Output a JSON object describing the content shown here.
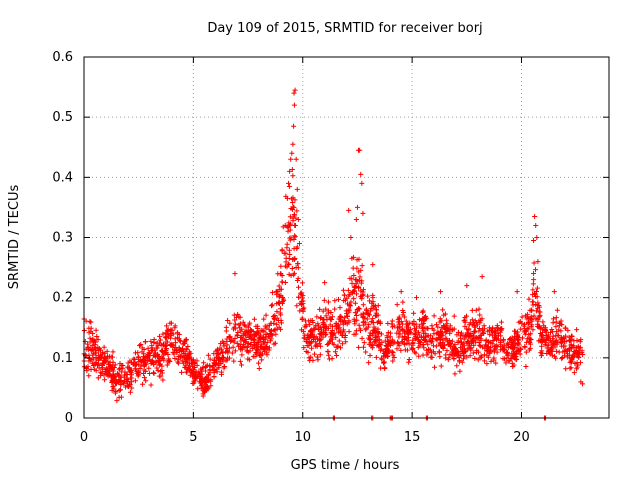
{
  "chart_data": {
    "type": "scatter",
    "title": "Day 109 of 2015, SRMTID for receiver borj",
    "xlabel": "GPS time / hours",
    "ylabel": "SRMTID / TECUs",
    "xlim": [
      0,
      24
    ],
    "ylim": [
      0,
      0.6
    ],
    "x_ticks": [
      "0",
      "5",
      "10",
      "15",
      "20"
    ],
    "y_ticks": [
      "0",
      "0.1",
      "0.2",
      "0.3",
      "0.4",
      "0.5",
      "0.6"
    ],
    "grid": true,
    "marker": "+",
    "color": "#ff0000",
    "baseline_x": [
      11.4,
      11.45,
      13.15,
      13.2,
      14.0,
      14.05,
      14.1,
      15.65,
      15.7,
      21.05,
      21.1
    ],
    "envelope": [
      [
        0.0,
        0.12,
        0.05
      ],
      [
        0.3,
        0.13,
        0.05
      ],
      [
        0.6,
        0.1,
        0.03
      ],
      [
        1.0,
        0.09,
        0.03
      ],
      [
        1.5,
        0.06,
        0.025
      ],
      [
        2.0,
        0.07,
        0.025
      ],
      [
        2.5,
        0.09,
        0.03
      ],
      [
        3.0,
        0.1,
        0.035
      ],
      [
        3.5,
        0.1,
        0.03
      ],
      [
        4.0,
        0.13,
        0.035
      ],
      [
        4.5,
        0.11,
        0.03
      ],
      [
        5.0,
        0.08,
        0.025
      ],
      [
        5.5,
        0.06,
        0.025
      ],
      [
        6.0,
        0.09,
        0.03
      ],
      [
        6.5,
        0.12,
        0.04
      ],
      [
        7.0,
        0.14,
        0.04
      ],
      [
        7.5,
        0.13,
        0.035
      ],
      [
        8.0,
        0.12,
        0.03
      ],
      [
        8.5,
        0.14,
        0.04
      ],
      [
        9.0,
        0.2,
        0.06
      ],
      [
        9.3,
        0.28,
        0.08
      ],
      [
        9.6,
        0.32,
        0.1
      ],
      [
        9.9,
        0.2,
        0.06
      ],
      [
        10.2,
        0.13,
        0.03
      ],
      [
        10.6,
        0.14,
        0.04
      ],
      [
        11.0,
        0.15,
        0.04
      ],
      [
        11.5,
        0.14,
        0.04
      ],
      [
        12.0,
        0.18,
        0.06
      ],
      [
        12.3,
        0.2,
        0.07
      ],
      [
        12.6,
        0.22,
        0.08
      ],
      [
        12.9,
        0.15,
        0.05
      ],
      [
        13.3,
        0.16,
        0.05
      ],
      [
        13.7,
        0.1,
        0.03
      ],
      [
        14.0,
        0.12,
        0.03
      ],
      [
        14.5,
        0.15,
        0.04
      ],
      [
        15.0,
        0.13,
        0.04
      ],
      [
        15.5,
        0.15,
        0.04
      ],
      [
        16.0,
        0.12,
        0.035
      ],
      [
        16.5,
        0.14,
        0.04
      ],
      [
        17.0,
        0.11,
        0.035
      ],
      [
        17.5,
        0.13,
        0.035
      ],
      [
        18.0,
        0.14,
        0.04
      ],
      [
        18.5,
        0.12,
        0.035
      ],
      [
        19.0,
        0.13,
        0.035
      ],
      [
        19.5,
        0.11,
        0.03
      ],
      [
        20.0,
        0.13,
        0.04
      ],
      [
        20.4,
        0.15,
        0.05
      ],
      [
        20.6,
        0.22,
        0.07
      ],
      [
        20.9,
        0.13,
        0.04
      ],
      [
        21.3,
        0.12,
        0.035
      ],
      [
        21.7,
        0.14,
        0.04
      ],
      [
        22.0,
        0.12,
        0.04
      ],
      [
        22.4,
        0.11,
        0.035
      ],
      [
        22.8,
        0.1,
        0.035
      ]
    ],
    "spikes": [
      [
        9.6,
        0.54
      ],
      [
        9.65,
        0.545
      ],
      [
        9.62,
        0.52
      ],
      [
        9.58,
        0.485
      ],
      [
        9.55,
        0.455
      ],
      [
        9.5,
        0.44
      ],
      [
        9.45,
        0.43
      ],
      [
        9.4,
        0.41
      ],
      [
        9.35,
        0.39
      ],
      [
        9.3,
        0.365
      ],
      [
        9.7,
        0.43
      ],
      [
        9.75,
        0.38
      ],
      [
        9.8,
        0.33
      ],
      [
        9.85,
        0.29
      ],
      [
        9.2,
        0.32
      ],
      [
        12.55,
        0.445
      ],
      [
        12.6,
        0.445
      ],
      [
        12.65,
        0.405
      ],
      [
        12.7,
        0.39
      ],
      [
        12.5,
        0.35
      ],
      [
        12.45,
        0.33
      ],
      [
        12.1,
        0.345
      ],
      [
        12.2,
        0.3
      ],
      [
        12.75,
        0.34
      ],
      [
        20.6,
        0.335
      ],
      [
        20.65,
        0.32
      ],
      [
        20.55,
        0.295
      ],
      [
        20.7,
        0.3
      ],
      [
        20.75,
        0.26
      ],
      [
        6.9,
        0.24
      ],
      [
        18.2,
        0.235
      ],
      [
        17.5,
        0.22
      ],
      [
        16.3,
        0.21
      ],
      [
        14.5,
        0.21
      ],
      [
        15.2,
        0.2
      ],
      [
        21.5,
        0.21
      ],
      [
        19.8,
        0.21
      ],
      [
        13.2,
        0.255
      ],
      [
        11.0,
        0.225
      ]
    ]
  }
}
